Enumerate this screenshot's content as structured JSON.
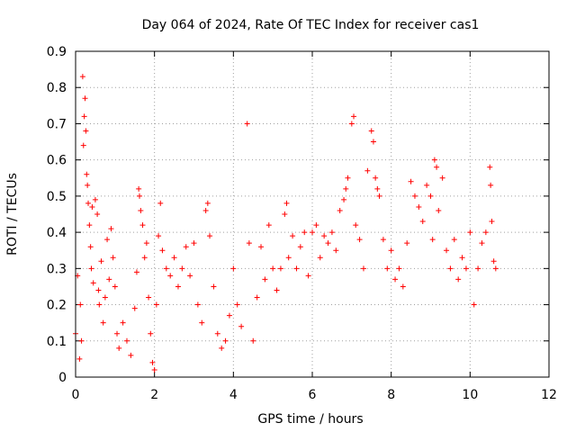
{
  "chart_data": {
    "type": "scatter",
    "title": "Day 064 of 2024, Rate Of TEC Index for receiver cas1",
    "xlabel": "GPS time / hours",
    "ylabel": "ROTI / TECUs",
    "xlim": [
      0,
      12
    ],
    "ylim": [
      0,
      0.9
    ],
    "xticks": [
      0,
      2,
      4,
      6,
      8,
      10,
      12
    ],
    "yticks": [
      0,
      0.1,
      0.2,
      0.3,
      0.4,
      0.5,
      0.6,
      0.7,
      0.8,
      0.9
    ],
    "xtick_labels": [
      "0",
      "2",
      "4",
      "6",
      "8",
      "10",
      "12"
    ],
    "ytick_labels": [
      "0",
      "0.1",
      "0.2",
      "0.3",
      "0.4",
      "0.5",
      "0.6",
      "0.7",
      "0.8",
      "0.9"
    ],
    "grid": true,
    "marker": "+",
    "series": [
      {
        "name": "cas1",
        "color": "#ff0000",
        "points": [
          [
            0.0,
            0.12
          ],
          [
            0.05,
            0.28
          ],
          [
            0.1,
            0.05
          ],
          [
            0.12,
            0.2
          ],
          [
            0.15,
            0.1
          ],
          [
            0.18,
            0.83
          ],
          [
            0.2,
            0.64
          ],
          [
            0.22,
            0.72
          ],
          [
            0.24,
            0.77
          ],
          [
            0.26,
            0.68
          ],
          [
            0.28,
            0.56
          ],
          [
            0.3,
            0.53
          ],
          [
            0.32,
            0.48
          ],
          [
            0.35,
            0.42
          ],
          [
            0.38,
            0.36
          ],
          [
            0.4,
            0.3
          ],
          [
            0.42,
            0.47
          ],
          [
            0.45,
            0.26
          ],
          [
            0.5,
            0.49
          ],
          [
            0.55,
            0.45
          ],
          [
            0.58,
            0.24
          ],
          [
            0.6,
            0.2
          ],
          [
            0.65,
            0.32
          ],
          [
            0.7,
            0.15
          ],
          [
            0.75,
            0.22
          ],
          [
            0.8,
            0.38
          ],
          [
            0.85,
            0.27
          ],
          [
            0.9,
            0.41
          ],
          [
            0.95,
            0.33
          ],
          [
            1.0,
            0.25
          ],
          [
            1.05,
            0.12
          ],
          [
            1.1,
            0.08
          ],
          [
            1.2,
            0.15
          ],
          [
            1.3,
            0.1
          ],
          [
            1.4,
            0.06
          ],
          [
            1.5,
            0.19
          ],
          [
            1.55,
            0.29
          ],
          [
            1.6,
            0.52
          ],
          [
            1.62,
            0.5
          ],
          [
            1.65,
            0.46
          ],
          [
            1.7,
            0.42
          ],
          [
            1.75,
            0.33
          ],
          [
            1.8,
            0.37
          ],
          [
            1.85,
            0.22
          ],
          [
            1.9,
            0.12
          ],
          [
            1.95,
            0.04
          ],
          [
            2.0,
            0.02
          ],
          [
            2.05,
            0.2
          ],
          [
            2.1,
            0.39
          ],
          [
            2.15,
            0.48
          ],
          [
            2.2,
            0.35
          ],
          [
            2.3,
            0.3
          ],
          [
            2.4,
            0.28
          ],
          [
            2.5,
            0.33
          ],
          [
            2.6,
            0.25
          ],
          [
            2.7,
            0.3
          ],
          [
            2.8,
            0.36
          ],
          [
            2.9,
            0.28
          ],
          [
            3.0,
            0.37
          ],
          [
            3.1,
            0.2
          ],
          [
            3.2,
            0.15
          ],
          [
            3.3,
            0.46
          ],
          [
            3.35,
            0.48
          ],
          [
            3.4,
            0.39
          ],
          [
            3.5,
            0.25
          ],
          [
            3.6,
            0.12
          ],
          [
            3.7,
            0.08
          ],
          [
            3.8,
            0.1
          ],
          [
            3.9,
            0.17
          ],
          [
            4.0,
            0.3
          ],
          [
            4.1,
            0.2
          ],
          [
            4.2,
            0.14
          ],
          [
            4.35,
            0.7
          ],
          [
            4.4,
            0.37
          ],
          [
            4.5,
            0.1
          ],
          [
            4.6,
            0.22
          ],
          [
            4.7,
            0.36
          ],
          [
            4.8,
            0.27
          ],
          [
            4.9,
            0.42
          ],
          [
            5.0,
            0.3
          ],
          [
            5.1,
            0.24
          ],
          [
            5.2,
            0.3
          ],
          [
            5.3,
            0.45
          ],
          [
            5.35,
            0.48
          ],
          [
            5.4,
            0.33
          ],
          [
            5.5,
            0.39
          ],
          [
            5.6,
            0.3
          ],
          [
            5.7,
            0.36
          ],
          [
            5.8,
            0.4
          ],
          [
            5.9,
            0.28
          ],
          [
            6.0,
            0.4
          ],
          [
            6.1,
            0.42
          ],
          [
            6.2,
            0.33
          ],
          [
            6.3,
            0.39
          ],
          [
            6.4,
            0.37
          ],
          [
            6.5,
            0.4
          ],
          [
            6.6,
            0.35
          ],
          [
            6.7,
            0.46
          ],
          [
            6.8,
            0.49
          ],
          [
            6.85,
            0.52
          ],
          [
            6.9,
            0.55
          ],
          [
            7.0,
            0.7
          ],
          [
            7.05,
            0.72
          ],
          [
            7.1,
            0.42
          ],
          [
            7.2,
            0.38
          ],
          [
            7.3,
            0.3
          ],
          [
            7.4,
            0.57
          ],
          [
            7.5,
            0.68
          ],
          [
            7.55,
            0.65
          ],
          [
            7.6,
            0.55
          ],
          [
            7.65,
            0.52
          ],
          [
            7.7,
            0.5
          ],
          [
            7.8,
            0.38
          ],
          [
            7.9,
            0.3
          ],
          [
            8.0,
            0.35
          ],
          [
            8.1,
            0.27
          ],
          [
            8.2,
            0.3
          ],
          [
            8.3,
            0.25
          ],
          [
            8.4,
            0.37
          ],
          [
            8.5,
            0.54
          ],
          [
            8.6,
            0.5
          ],
          [
            8.7,
            0.47
          ],
          [
            8.8,
            0.43
          ],
          [
            8.9,
            0.53
          ],
          [
            9.0,
            0.5
          ],
          [
            9.05,
            0.38
          ],
          [
            9.1,
            0.6
          ],
          [
            9.15,
            0.58
          ],
          [
            9.2,
            0.46
          ],
          [
            9.3,
            0.55
          ],
          [
            9.4,
            0.35
          ],
          [
            9.5,
            0.3
          ],
          [
            9.6,
            0.38
          ],
          [
            9.7,
            0.27
          ],
          [
            9.8,
            0.33
          ],
          [
            9.9,
            0.3
          ],
          [
            10.0,
            0.4
          ],
          [
            10.1,
            0.2
          ],
          [
            10.2,
            0.3
          ],
          [
            10.3,
            0.37
          ],
          [
            10.4,
            0.4
          ],
          [
            10.5,
            0.58
          ],
          [
            10.52,
            0.53
          ],
          [
            10.55,
            0.43
          ],
          [
            10.6,
            0.32
          ],
          [
            10.65,
            0.3
          ]
        ]
      }
    ]
  }
}
